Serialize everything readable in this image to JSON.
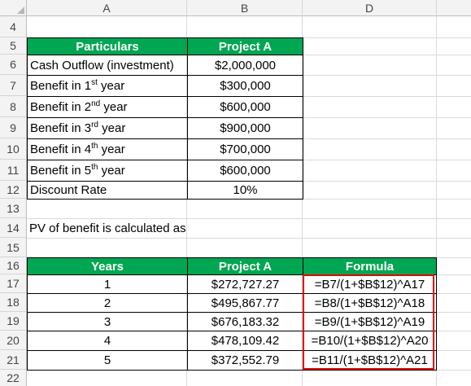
{
  "columns": [
    "A",
    "B",
    "D"
  ],
  "rows": [
    "4",
    "5",
    "6",
    "7",
    "8",
    "9",
    "10",
    "11",
    "12",
    "13",
    "14",
    "15",
    "16",
    "17",
    "18",
    "19",
    "20",
    "21",
    "22"
  ],
  "table1": {
    "header": [
      "Particulars",
      "Project A"
    ],
    "rows": [
      {
        "pre": "Cash Outflow (investment)",
        "sup": "",
        "post": "",
        "value": "$2,000,000"
      },
      {
        "pre": "Benefit in 1",
        "sup": "st",
        "post": " year",
        "value": "$300,000"
      },
      {
        "pre": "Benefit in 2",
        "sup": "nd",
        "post": " year",
        "value": "$600,000"
      },
      {
        "pre": "Benefit in 3",
        "sup": "rd",
        "post": " year",
        "value": "$900,000"
      },
      {
        "pre": "Benefit in 4",
        "sup": "th",
        "post": " year",
        "value": "$700,000"
      },
      {
        "pre": "Benefit in 5",
        "sup": "th",
        "post": " year",
        "value": "$600,000"
      }
    ],
    "discount_label": "Discount Rate",
    "discount_value": "10%"
  },
  "note": "PV of benefit is calculated as",
  "table2": {
    "header": [
      "Years",
      "Project A",
      "Formula"
    ],
    "rows": [
      [
        "1",
        "$272,727.27",
        "=B7/(1+$B$12)^A17"
      ],
      [
        "2",
        "$495,867.77",
        "=B8/(1+$B$12)^A18"
      ],
      [
        "3",
        "$676,183.32",
        "=B9/(1+$B$12)^A19"
      ],
      [
        "4",
        "$478,109.42",
        "=B10/(1+$B$12)^A20"
      ],
      [
        "5",
        "$372,552.79",
        "=B11/(1+$B$12)^A21"
      ]
    ]
  },
  "colors": {
    "header_green": "#00a651",
    "highlight_red": "#e60000"
  }
}
